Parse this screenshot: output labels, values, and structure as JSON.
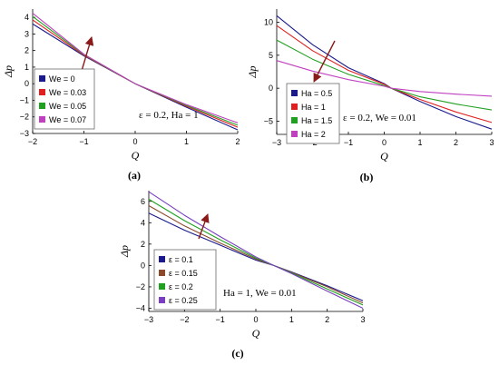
{
  "chart_data": [
    {
      "type": "line",
      "caption": "(a)",
      "xlabel": "Q",
      "ylabel": "Δp",
      "xlim": [
        -2,
        2
      ],
      "ylim": [
        -3,
        4.5
      ],
      "xticks": [
        -2,
        -1,
        0,
        1,
        2
      ],
      "yticks": [
        -3,
        -2,
        -1,
        0,
        1,
        2,
        3,
        4
      ],
      "annotation": "ε = 0.2, Ha = 1",
      "arrow": "up",
      "x": [
        -2,
        -1,
        0,
        1,
        2
      ],
      "series": [
        {
          "name": "We = 0",
          "color": "#1a1a8c",
          "values": [
            3.6,
            1.68,
            0.0,
            -1.42,
            -2.78
          ]
        },
        {
          "name": "We = 0.03",
          "color": "#e02020",
          "values": [
            3.85,
            1.72,
            0.0,
            -1.36,
            -2.62
          ]
        },
        {
          "name": "We = 0.05",
          "color": "#20a020",
          "values": [
            4.05,
            1.75,
            0.0,
            -1.31,
            -2.5
          ]
        },
        {
          "name": "We = 0.07",
          "color": "#c040c0",
          "values": [
            4.25,
            1.78,
            0.0,
            -1.26,
            -2.36
          ]
        }
      ],
      "legend_position": "lower-left"
    },
    {
      "type": "line",
      "caption": "(b)",
      "xlabel": "Q",
      "ylabel": "Δp",
      "xlim": [
        -3,
        3
      ],
      "ylim": [
        -7,
        12
      ],
      "xticks": [
        -3,
        -2,
        -1,
        0,
        1,
        2,
        3
      ],
      "yticks": [
        -5,
        0,
        5,
        10
      ],
      "annotation": "ε = 0.2, We = 0.01",
      "arrow": "down",
      "x": [
        -3,
        -2,
        -1,
        0,
        0.2,
        1,
        2,
        3
      ],
      "series": [
        {
          "name": "Ha = 0.5",
          "color": "#1a1a8c",
          "values": [
            11.0,
            6.6,
            3.1,
            0.7,
            0.0,
            -2.0,
            -4.3,
            -6.2
          ]
        },
        {
          "name": "Ha = 1",
          "color": "#e02020",
          "values": [
            9.5,
            5.7,
            2.7,
            0.6,
            0.0,
            -1.7,
            -3.6,
            -5.2
          ]
        },
        {
          "name": "Ha = 1.5",
          "color": "#20a020",
          "values": [
            7.3,
            4.4,
            2.1,
            0.4,
            0.0,
            -1.3,
            -2.4,
            -3.3
          ]
        },
        {
          "name": "Ha = 2",
          "color": "#c040c0",
          "values": [
            4.2,
            2.6,
            1.3,
            0.3,
            0.0,
            -0.5,
            -0.9,
            -1.2
          ]
        }
      ],
      "legend_position": "lower-left"
    },
    {
      "type": "line",
      "caption": "(c)",
      "xlabel": "Q",
      "ylabel": "Δp",
      "xlim": [
        -3,
        3
      ],
      "ylim": [
        -4.3,
        7
      ],
      "xticks": [
        -3,
        -2,
        -1,
        0,
        1,
        2,
        3
      ],
      "yticks": [
        -4,
        -2,
        0,
        2,
        4,
        6
      ],
      "annotation": "Ha = 1, We = 0.01",
      "arrow": "up",
      "x": [
        -3,
        -2,
        -1,
        0,
        0.5,
        1,
        2,
        3
      ],
      "series": [
        {
          "name": "ε = 0.1",
          "color": "#1a1a8c",
          "values": [
            4.9,
            3.3,
            1.9,
            0.5,
            0.0,
            -0.6,
            -1.9,
            -3.3
          ]
        },
        {
          "name": "ε = 0.15",
          "color": "#8b4a2b",
          "values": [
            5.6,
            3.7,
            2.1,
            0.6,
            0.0,
            -0.65,
            -2.0,
            -3.5
          ]
        },
        {
          "name": "ε = 0.2",
          "color": "#20a020",
          "values": [
            6.2,
            4.2,
            2.4,
            0.7,
            0.0,
            -0.7,
            -2.2,
            -3.7
          ]
        },
        {
          "name": "ε = 0.25",
          "color": "#7a3fc0",
          "values": [
            6.9,
            4.7,
            2.7,
            0.8,
            0.0,
            -0.75,
            -2.4,
            -4.0
          ]
        }
      ],
      "legend_position": "lower-left"
    }
  ]
}
